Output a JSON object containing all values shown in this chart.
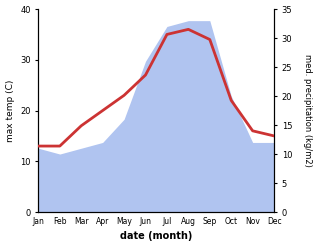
{
  "months": [
    "Jan",
    "Feb",
    "Mar",
    "Apr",
    "May",
    "Jun",
    "Jul",
    "Aug",
    "Sep",
    "Oct",
    "Nov",
    "Dec"
  ],
  "max_temp": [
    13,
    13,
    17,
    20,
    23,
    27,
    35,
    36,
    34,
    22,
    16,
    15
  ],
  "precipitation": [
    11,
    10,
    11,
    12,
    16,
    26,
    32,
    33,
    33,
    20,
    12,
    12
  ],
  "temp_color": "#cc3333",
  "precip_color": "#b0c4f0",
  "temp_ylim": [
    0,
    40
  ],
  "precip_ylim": [
    0,
    35
  ],
  "temp_yticks": [
    0,
    10,
    20,
    30,
    40
  ],
  "precip_yticks": [
    0,
    5,
    10,
    15,
    20,
    25,
    30,
    35
  ],
  "xlabel": "date (month)",
  "ylabel_left": "max temp (C)",
  "ylabel_right": "med. precipitation (kg/m2)",
  "background_color": "#ffffff",
  "line_width": 2.0
}
